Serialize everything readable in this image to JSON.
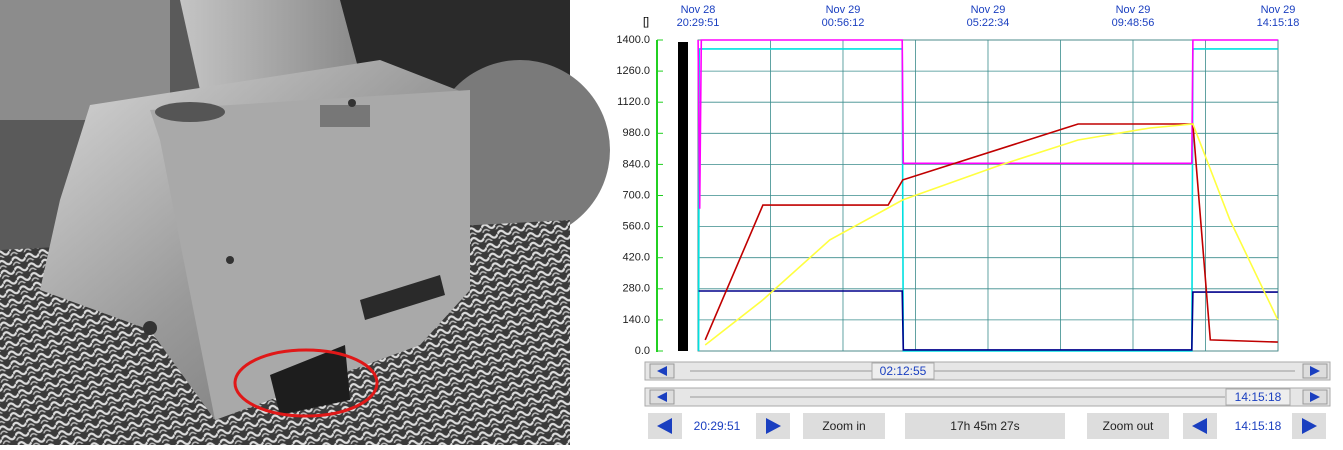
{
  "chart_data": {
    "type": "line",
    "ylabel": "[]",
    "xlim": [
      "Nov 28 20:29:51",
      "Nov 29 14:15:18"
    ],
    "xticks": [
      {
        "date": "Nov 28",
        "time": "20:29:51"
      },
      {
        "date": "Nov 29",
        "time": "00:56:12"
      },
      {
        "date": "Nov 29",
        "time": "05:22:34"
      },
      {
        "date": "Nov 29",
        "time": "09:48:56"
      },
      {
        "date": "Nov 29",
        "time": "14:15:18"
      }
    ],
    "ylim": [
      0,
      1400
    ],
    "yticks": [
      {
        "value": 0,
        "label": "0.0"
      },
      {
        "value": 140,
        "label": "140.0"
      },
      {
        "value": 280,
        "label": "280.0"
      },
      {
        "value": 420,
        "label": "420.0"
      },
      {
        "value": 560,
        "label": "560.0"
      },
      {
        "value": 700,
        "label": "700.0"
      },
      {
        "value": 840,
        "label": "840.0"
      },
      {
        "value": 980,
        "label": "980.0"
      },
      {
        "value": 1120,
        "label": "1120.0"
      },
      {
        "value": 1260,
        "label": "1260.0"
      },
      {
        "value": 1400,
        "label": "1400.0"
      }
    ],
    "grid": true,
    "series": [
      {
        "color": "#00e0e0",
        "x": [
          "Nov 28 20:31",
          "Nov 28 20:32",
          "Nov 29 02:45",
          "Nov 29 02:47",
          "Nov 29 11:37",
          "Nov 29 11:39",
          "Nov 29 14:15"
        ],
        "values": [
          0,
          1360,
          1360,
          0,
          0,
          1360,
          1360
        ]
      },
      {
        "color": "#ff00ff",
        "x": [
          "Nov 28 20:30",
          "Nov 28 20:33",
          "Nov 28 20:36",
          "Nov 29 02:45",
          "Nov 29 02:47",
          "Nov 29 11:37",
          "Nov 29 11:39",
          "Nov 29 14:15"
        ],
        "values": [
          1400,
          640,
          1400,
          1400,
          845,
          845,
          1400,
          1400
        ]
      },
      {
        "color": "#00008b",
        "x": [
          "Nov 28 20:31",
          "Nov 29 02:45",
          "Nov 29 02:47",
          "Nov 29 11:37",
          "Nov 29 11:39",
          "Nov 29 14:15"
        ],
        "values": [
          270,
          270,
          5,
          5,
          265,
          265
        ]
      },
      {
        "color": "#c00000",
        "x": [
          "Nov 28 20:43",
          "Nov 28 22:29",
          "Nov 29 02:19",
          "Nov 29 02:46",
          "Nov 29 08:08",
          "Nov 29 11:39",
          "Nov 29 12:11",
          "Nov 29 14:15"
        ],
        "values": [
          50,
          657,
          657,
          770,
          1022,
          1022,
          50,
          40
        ]
      },
      {
        "color": "#ffff40",
        "x": [
          "Nov 28 20:43",
          "Nov 28 22:29",
          "Nov 29 00:32",
          "Nov 29 02:46",
          "Nov 29 05:45",
          "Nov 29 08:08",
          "Nov 29 10:20",
          "Nov 29 11:39",
          "Nov 29 12:47",
          "Nov 29 14:15"
        ],
        "values": [
          27,
          230,
          500,
          680,
          837,
          950,
          1004,
          1022,
          590,
          140
        ]
      }
    ]
  },
  "controls": {
    "scroll_top": "02:12:55",
    "scroll_bottom": "14:15:18",
    "start": "20:29:51",
    "zoom_in": "Zoom in",
    "span": "17h 45m 27s",
    "zoom_out": "Zoom out",
    "end": "14:15:18"
  }
}
